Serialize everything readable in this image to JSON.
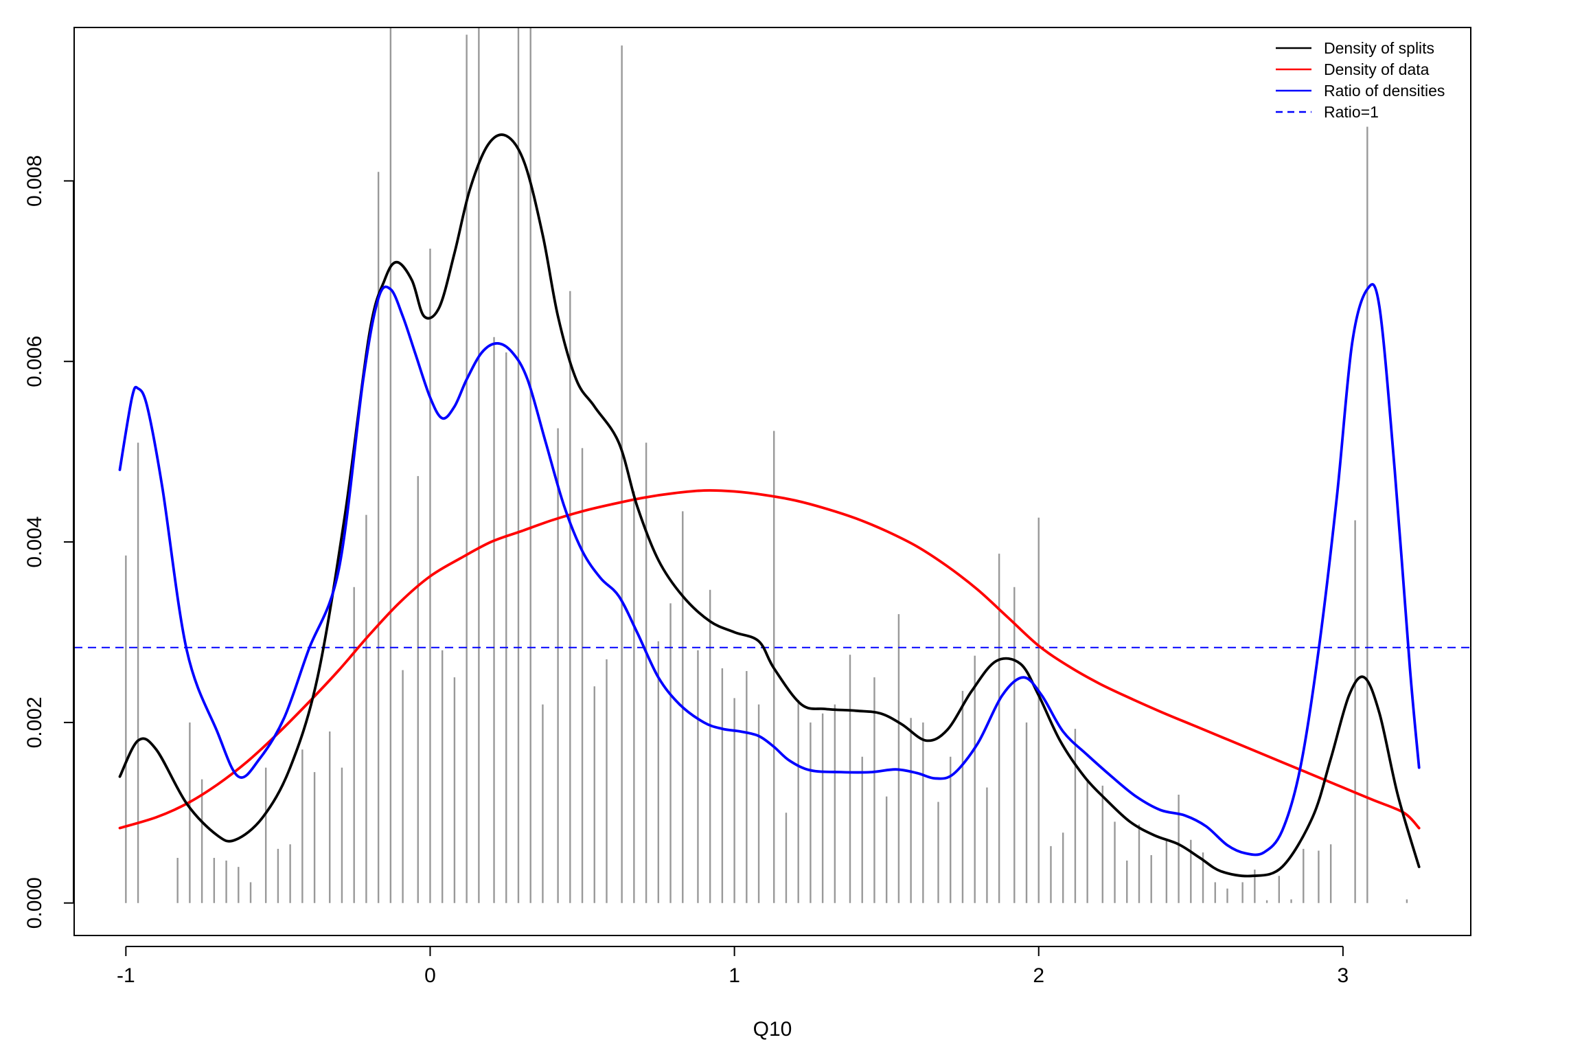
{
  "chart_data": {
    "type": "line",
    "title": "",
    "xlabel": "Q10",
    "ylabel": "",
    "xlim": [
      -1.17,
      3.42
    ],
    "ylim": [
      -0.00036,
      0.0097
    ],
    "x_ticks": [
      -1,
      0,
      1,
      2,
      3
    ],
    "x_tick_labels": [
      "-1",
      "0",
      "1",
      "2",
      "3"
    ],
    "y_ticks": [
      0,
      0.002,
      0.004,
      0.006,
      0.008
    ],
    "y_tick_labels": [
      "0.000",
      "0.002",
      "0.004",
      "0.006",
      "0.008"
    ],
    "grid": false,
    "legend_position": "top-right",
    "legend": [
      {
        "label": "Density of splits",
        "color": "#000000",
        "dash": "solid"
      },
      {
        "label": "Density of data",
        "color": "#ff0000",
        "dash": "solid"
      },
      {
        "label": "Ratio of densities",
        "color": "#0000ff",
        "dash": "solid"
      },
      {
        "label": "Ratio=1",
        "color": "#0000ff",
        "dash": "dashed"
      }
    ],
    "bars": {
      "name": "split counts (scaled)",
      "color": "#999999",
      "x": [
        -1.0,
        -0.96,
        -0.83,
        -0.79,
        -0.75,
        -0.71,
        -0.67,
        -0.63,
        -0.59,
        -0.54,
        -0.5,
        -0.46,
        -0.42,
        -0.38,
        -0.33,
        -0.29,
        -0.25,
        -0.21,
        -0.17,
        -0.13,
        -0.09,
        -0.04,
        0.0,
        0.04,
        0.08,
        0.12,
        0.16,
        0.21,
        0.25,
        0.29,
        0.33,
        0.37,
        0.42,
        0.46,
        0.5,
        0.54,
        0.58,
        0.63,
        0.67,
        0.71,
        0.75,
        0.79,
        0.83,
        0.88,
        0.92,
        0.96,
        1.0,
        1.04,
        1.08,
        1.13,
        1.17,
        1.21,
        1.25,
        1.29,
        1.33,
        1.38,
        1.42,
        1.46,
        1.5,
        1.54,
        1.58,
        1.62,
        1.67,
        1.71,
        1.75,
        1.79,
        1.83,
        1.87,
        1.92,
        1.96,
        2.0,
        2.04,
        2.08,
        2.12,
        2.16,
        2.21,
        2.25,
        2.29,
        2.33,
        2.37,
        2.42,
        2.46,
        2.5,
        2.54,
        2.58,
        2.62,
        2.67,
        2.71,
        2.75,
        2.79,
        2.83,
        2.87,
        2.92,
        2.96,
        3.04,
        3.08,
        3.21
      ],
      "values": [
        0.00385,
        0.0051,
        0.0005,
        0.002,
        0.00137,
        0.0005,
        0.00047,
        0.0004,
        0.00023,
        0.0015,
        0.0006,
        0.00065,
        0.0017,
        0.00145,
        0.0019,
        0.0015,
        0.0035,
        0.0043,
        0.0081,
        0.0097,
        0.00258,
        0.00473,
        0.00725,
        0.0028,
        0.0025,
        0.00962,
        0.0097,
        0.00627,
        0.0061,
        0.0097,
        0.0097,
        0.0022,
        0.00526,
        0.00678,
        0.00504,
        0.0024,
        0.0027,
        0.0095,
        0.00456,
        0.0051,
        0.0029,
        0.00332,
        0.00434,
        0.0028,
        0.00347,
        0.0026,
        0.00227,
        0.00257,
        0.0022,
        0.00523,
        0.001,
        0.00225,
        0.002,
        0.0021,
        0.0022,
        0.00275,
        0.00162,
        0.0025,
        0.00118,
        0.0032,
        0.00205,
        0.002,
        0.00112,
        0.00162,
        0.00235,
        0.00274,
        0.00128,
        0.00387,
        0.0035,
        0.002,
        0.00427,
        0.00063,
        0.00078,
        0.00193,
        0.00137,
        0.0013,
        0.0009,
        0.00047,
        0.00087,
        0.00053,
        0.0007,
        0.0012,
        0.0007,
        0.00056,
        0.00023,
        0.00016,
        0.00023,
        0.00037,
        3e-05,
        0.0003,
        4e-05,
        0.0006,
        0.00058,
        0.00065,
        0.00424,
        0.0086,
        4e-05
      ]
    },
    "reference_line": {
      "name": "Ratio=1",
      "y": 0.00283,
      "color": "#0000ff",
      "dash": "dashed"
    },
    "series": [
      {
        "name": "Density of splits",
        "color": "#000000",
        "x": [
          -1.02,
          -0.96,
          -0.9,
          -0.8,
          -0.7,
          -0.64,
          -0.55,
          -0.46,
          -0.37,
          -0.28,
          -0.2,
          -0.15,
          -0.11,
          -0.06,
          -0.02,
          0.03,
          0.08,
          0.13,
          0.19,
          0.25,
          0.31,
          0.37,
          0.42,
          0.48,
          0.54,
          0.62,
          0.68,
          0.75,
          0.83,
          0.92,
          1.0,
          1.08,
          1.13,
          1.22,
          1.3,
          1.4,
          1.48,
          1.55,
          1.63,
          1.7,
          1.78,
          1.86,
          1.94,
          2.0,
          2.07,
          2.15,
          2.22,
          2.3,
          2.38,
          2.46,
          2.53,
          2.6,
          2.7,
          2.8,
          2.9,
          2.96,
          3.02,
          3.07,
          3.12,
          3.18,
          3.25
        ],
        "values": [
          0.0014,
          0.0018,
          0.0017,
          0.0011,
          0.00075,
          0.0007,
          0.00095,
          0.0015,
          0.0025,
          0.0043,
          0.0063,
          0.0069,
          0.0071,
          0.0069,
          0.0065,
          0.0066,
          0.0072,
          0.0079,
          0.0084,
          0.0085,
          0.0082,
          0.0074,
          0.0065,
          0.0058,
          0.0055,
          0.0051,
          0.0044,
          0.0038,
          0.0034,
          0.00312,
          0.003,
          0.0029,
          0.0026,
          0.0022,
          0.00215,
          0.00213,
          0.0021,
          0.00198,
          0.0018,
          0.00192,
          0.00235,
          0.00268,
          0.00265,
          0.0023,
          0.0018,
          0.0014,
          0.00115,
          0.0009,
          0.00075,
          0.00065,
          0.0005,
          0.00035,
          0.0003,
          0.0004,
          0.00095,
          0.0016,
          0.0023,
          0.0025,
          0.0021,
          0.0012,
          0.0004
        ]
      },
      {
        "name": "Density of data",
        "color": "#ff0000",
        "x": [
          -1.02,
          -0.9,
          -0.8,
          -0.7,
          -0.6,
          -0.5,
          -0.4,
          -0.3,
          -0.2,
          -0.1,
          0.0,
          0.1,
          0.2,
          0.3,
          0.4,
          0.5,
          0.6,
          0.7,
          0.8,
          0.9,
          1.0,
          1.1,
          1.2,
          1.3,
          1.4,
          1.5,
          1.6,
          1.7,
          1.8,
          1.9,
          2.0,
          2.1,
          2.2,
          2.3,
          2.4,
          2.5,
          2.6,
          2.7,
          2.8,
          2.9,
          3.0,
          3.1,
          3.2,
          3.25
        ],
        "values": [
          0.00083,
          0.00095,
          0.0011,
          0.00131,
          0.00157,
          0.00188,
          0.00222,
          0.00258,
          0.00297,
          0.00333,
          0.00362,
          0.00382,
          0.004,
          0.00412,
          0.00424,
          0.00434,
          0.00442,
          0.00449,
          0.00454,
          0.00457,
          0.00456,
          0.00452,
          0.00446,
          0.00437,
          0.00426,
          0.00412,
          0.00395,
          0.00373,
          0.00347,
          0.00316,
          0.00285,
          0.00262,
          0.00243,
          0.00227,
          0.00212,
          0.00198,
          0.00184,
          0.0017,
          0.00156,
          0.00142,
          0.00128,
          0.00114,
          0.001,
          0.00083
        ]
      },
      {
        "name": "Ratio of densities",
        "color": "#0000ff",
        "x": [
          -1.02,
          -0.98,
          -0.96,
          -0.93,
          -0.88,
          -0.8,
          -0.7,
          -0.63,
          -0.56,
          -0.48,
          -0.4,
          -0.3,
          -0.22,
          -0.17,
          -0.13,
          -0.09,
          -0.05,
          0.0,
          0.04,
          0.08,
          0.12,
          0.17,
          0.22,
          0.27,
          0.32,
          0.38,
          0.44,
          0.5,
          0.56,
          0.62,
          0.68,
          0.75,
          0.82,
          0.9,
          0.96,
          1.02,
          1.08,
          1.13,
          1.18,
          1.25,
          1.35,
          1.45,
          1.53,
          1.6,
          1.66,
          1.72,
          1.8,
          1.88,
          1.95,
          2.01,
          2.08,
          2.16,
          2.24,
          2.32,
          2.4,
          2.48,
          2.55,
          2.62,
          2.68,
          2.74,
          2.8,
          2.86,
          2.92,
          2.98,
          3.03,
          3.08,
          3.12,
          3.17,
          3.22,
          3.25
        ],
        "values": [
          0.0048,
          0.0056,
          0.0057,
          0.0055,
          0.0046,
          0.0028,
          0.0019,
          0.0014,
          0.0016,
          0.00205,
          0.0028,
          0.0037,
          0.0058,
          0.0067,
          0.0068,
          0.0065,
          0.0061,
          0.0056,
          0.00537,
          0.0055,
          0.0058,
          0.0061,
          0.0062,
          0.0061,
          0.0058,
          0.0051,
          0.0044,
          0.0039,
          0.0036,
          0.0034,
          0.003,
          0.0025,
          0.0022,
          0.002,
          0.00193,
          0.0019,
          0.00185,
          0.00173,
          0.00158,
          0.00147,
          0.00145,
          0.00145,
          0.00148,
          0.00144,
          0.00138,
          0.00143,
          0.00177,
          0.0023,
          0.0025,
          0.0023,
          0.0019,
          0.00164,
          0.0014,
          0.00118,
          0.00103,
          0.00097,
          0.00085,
          0.00064,
          0.00055,
          0.00056,
          0.0008,
          0.0015,
          0.0028,
          0.0045,
          0.0062,
          0.0068,
          0.0066,
          0.0048,
          0.0026,
          0.0015
        ]
      }
    ]
  }
}
